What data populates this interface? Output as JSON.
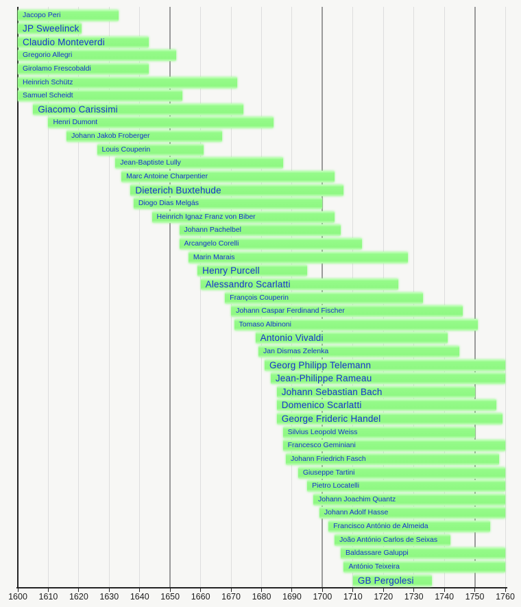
{
  "chart": {
    "background_color": "#f7f7f5",
    "bar_color": "#92f986",
    "bar_edge_color": "#c9ffc2",
    "name_link_color": "#1630cf",
    "grid_minor_color": "#dddddd",
    "grid_major_color": "#999999",
    "axis_color": "#222222",
    "tick_label_color": "#1a1a1a"
  },
  "chart_data": {
    "type": "bar",
    "subtype": "horizontal-lifespan-timeline",
    "title": "",
    "x_axis": {
      "min": 1600,
      "max": 1760,
      "tick_interval": 10,
      "tick_labels": [
        "1600",
        "1610",
        "1620",
        "1630",
        "1640",
        "1650",
        "1660",
        "1670",
        "1680",
        "1690",
        "1700",
        "1710",
        "1720",
        "1730",
        "1740",
        "1750",
        "1760"
      ],
      "major_gridlines": [
        1650,
        1700,
        1750
      ],
      "grid": "on",
      "note": "bar spans clipped to visible axis range 1600-1760"
    },
    "bars": [
      {
        "name": "Jacopo Peri",
        "start": 1600,
        "end": 1633,
        "large": false
      },
      {
        "name": "JP Sweelinck",
        "start": 1600,
        "end": 1621,
        "large": true
      },
      {
        "name": "Claudio Monteverdi",
        "start": 1600,
        "end": 1643,
        "large": true
      },
      {
        "name": "Gregorio Allegri",
        "start": 1600,
        "end": 1652,
        "large": false
      },
      {
        "name": "Girolamo Frescobaldi",
        "start": 1600,
        "end": 1643,
        "large": false
      },
      {
        "name": "Heinrich Schütz",
        "start": 1600,
        "end": 1672,
        "large": false
      },
      {
        "name": "Samuel Scheidt",
        "start": 1600,
        "end": 1654,
        "large": false
      },
      {
        "name": "Giacomo Carissimi",
        "start": 1605,
        "end": 1674,
        "large": true
      },
      {
        "name": "Henri Dumont",
        "start": 1610,
        "end": 1684,
        "large": false
      },
      {
        "name": "Johann Jakob Froberger",
        "start": 1616,
        "end": 1667,
        "large": false
      },
      {
        "name": "Louis Couperin",
        "start": 1626,
        "end": 1661,
        "large": false
      },
      {
        "name": "Jean-Baptiste Lully",
        "start": 1632,
        "end": 1687,
        "large": false
      },
      {
        "name": "Marc Antoine Charpentier",
        "start": 1634,
        "end": 1704,
        "large": false
      },
      {
        "name": "Dieterich Buxtehude",
        "start": 1637,
        "end": 1707,
        "large": true
      },
      {
        "name": "Diogo Dias Melgás",
        "start": 1638,
        "end": 1700,
        "large": false
      },
      {
        "name": "Heinrich Ignaz Franz von Biber",
        "start": 1644,
        "end": 1704,
        "large": false
      },
      {
        "name": "Johann Pachelbel",
        "start": 1653,
        "end": 1706,
        "large": false
      },
      {
        "name": "Arcangelo Corelli",
        "start": 1653,
        "end": 1713,
        "large": false
      },
      {
        "name": "Marin Marais",
        "start": 1656,
        "end": 1728,
        "large": false
      },
      {
        "name": "Henry Purcell",
        "start": 1659,
        "end": 1695,
        "large": true
      },
      {
        "name": "Alessandro Scarlatti",
        "start": 1660,
        "end": 1725,
        "large": true
      },
      {
        "name": "François Couperin",
        "start": 1668,
        "end": 1733,
        "large": false
      },
      {
        "name": "Johann Caspar Ferdinand Fischer",
        "start": 1670,
        "end": 1746,
        "large": false
      },
      {
        "name": "Tomaso Albinoni",
        "start": 1671,
        "end": 1751,
        "large": false
      },
      {
        "name": "Antonio Vivaldi",
        "start": 1678,
        "end": 1741,
        "large": true
      },
      {
        "name": "Jan Dismas Zelenka",
        "start": 1679,
        "end": 1745,
        "large": false
      },
      {
        "name": "Georg Philipp Telemann",
        "start": 1681,
        "end": 1760,
        "large": true
      },
      {
        "name": "Jean-Philippe Rameau",
        "start": 1683,
        "end": 1760,
        "large": true
      },
      {
        "name": "Johann Sebastian Bach",
        "start": 1685,
        "end": 1750,
        "large": true
      },
      {
        "name": "Domenico Scarlatti",
        "start": 1685,
        "end": 1757,
        "large": true
      },
      {
        "name": "George Frideric Handel",
        "start": 1685,
        "end": 1759,
        "large": true
      },
      {
        "name": "Silvius Leopold Weiss",
        "start": 1687,
        "end": 1750,
        "large": false
      },
      {
        "name": "Francesco Geminiani",
        "start": 1687,
        "end": 1760,
        "large": false
      },
      {
        "name": "Johann Friedrich Fasch",
        "start": 1688,
        "end": 1758,
        "large": false
      },
      {
        "name": "Giuseppe Tartini",
        "start": 1692,
        "end": 1760,
        "large": false
      },
      {
        "name": "Pietro Locatelli",
        "start": 1695,
        "end": 1760,
        "large": false
      },
      {
        "name": "Johann Joachim Quantz",
        "start": 1697,
        "end": 1760,
        "large": false
      },
      {
        "name": "Johann Adolf Hasse",
        "start": 1699,
        "end": 1760,
        "large": false
      },
      {
        "name": "Francisco António de Almeida",
        "start": 1702,
        "end": 1755,
        "large": false
      },
      {
        "name": "João António Carlos de Seixas",
        "start": 1704,
        "end": 1742,
        "large": false
      },
      {
        "name": "Baldassare Galuppi",
        "start": 1706,
        "end": 1760,
        "large": false
      },
      {
        "name": "António Teixeira",
        "start": 1707,
        "end": 1760,
        "large": false
      },
      {
        "name": "GB Pergolesi",
        "start": 1710,
        "end": 1736,
        "large": true
      }
    ]
  }
}
